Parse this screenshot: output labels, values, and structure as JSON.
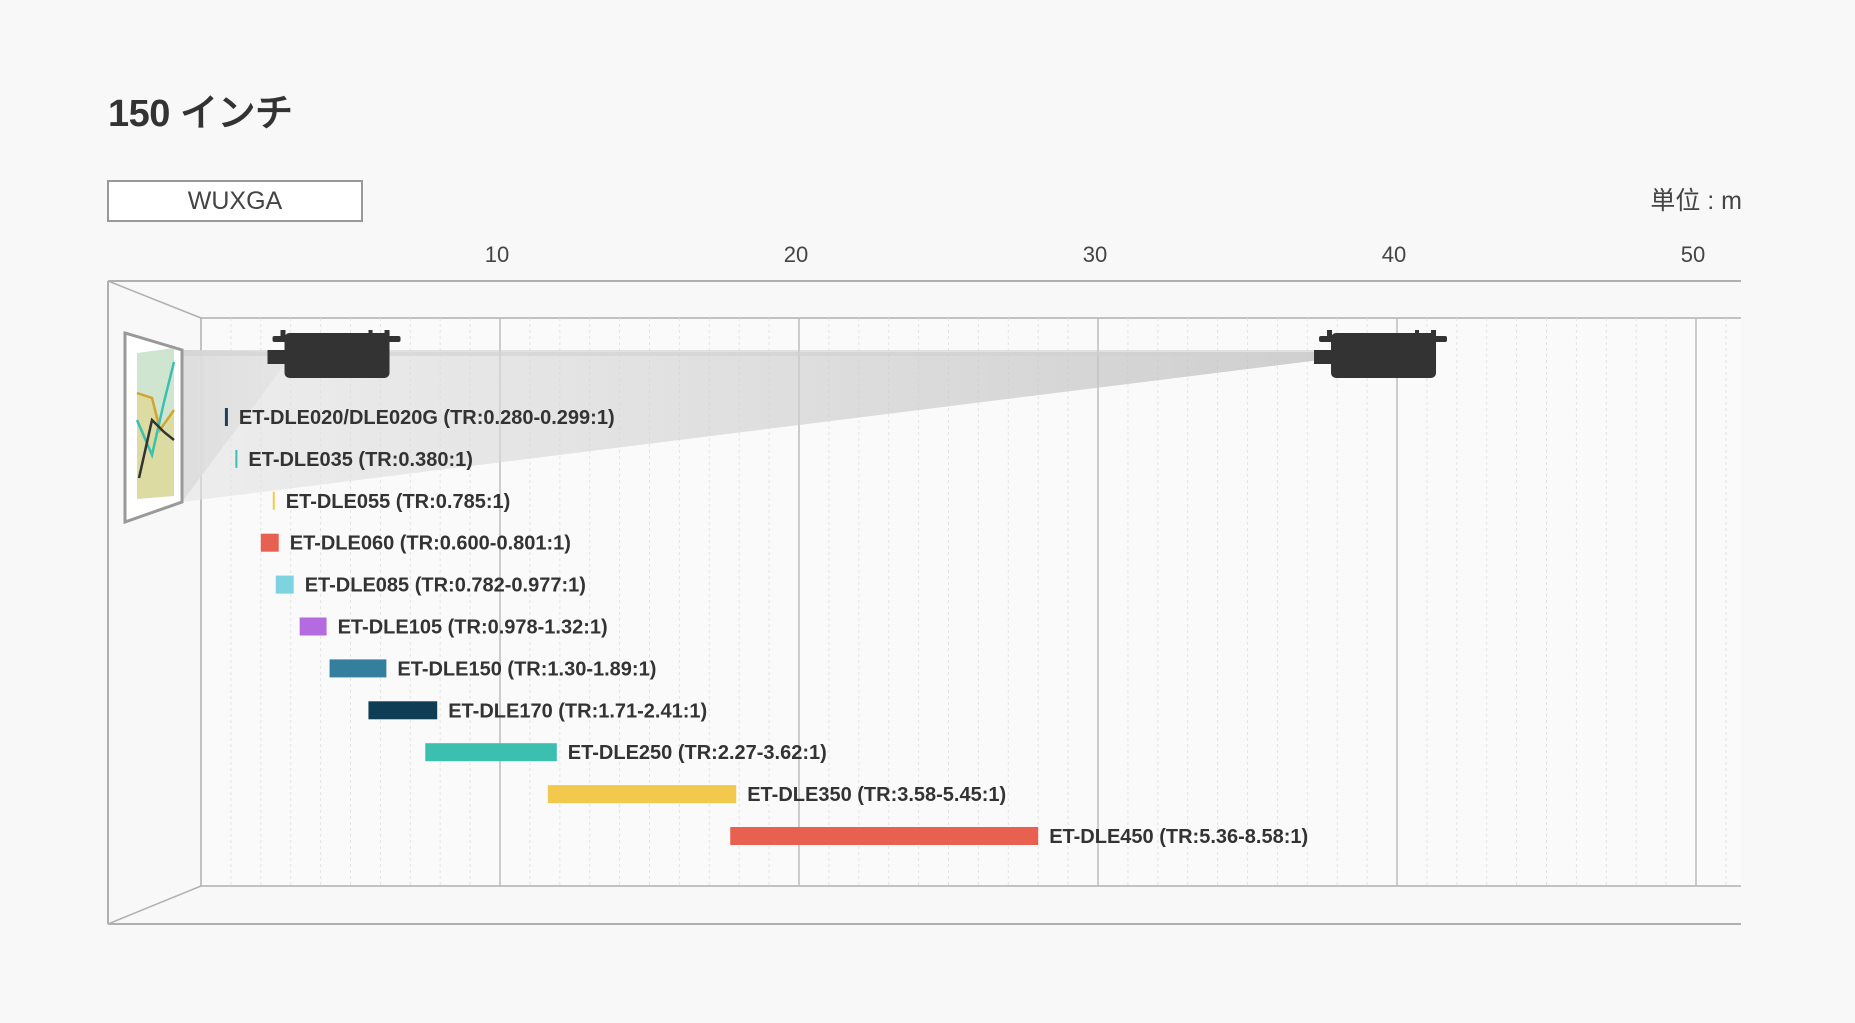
{
  "page": {
    "title": "150 インチ"
  },
  "resolution": {
    "label": "WUXGA"
  },
  "unit": {
    "label": "単位 : m"
  },
  "chart_data": {
    "type": "bar",
    "orientation": "horizontal-range",
    "title": "150 インチ",
    "xlabel": "単位 : m",
    "xlim": [
      0,
      52
    ],
    "major_ticks": [
      10,
      20,
      30,
      40,
      50
    ],
    "minor_tick_step": 1,
    "grid": true,
    "series": [
      {
        "name": "ET-DLE020/DLE020G (TR:0.280-0.299:1)",
        "start": 0.8,
        "end": 0.9,
        "color": "#1d3f5a"
      },
      {
        "name": "ET-DLE035 (TR:0.380:1)",
        "start": 1.15,
        "end": 1.2,
        "color": "#3bc0b0"
      },
      {
        "name": "ET-DLE055 (TR:0.785:1)",
        "start": 2.4,
        "end": 2.45,
        "color": "#f2c94c"
      },
      {
        "name": "ET-DLE060 (TR:0.600-0.801:1)",
        "start": 2.0,
        "end": 2.6,
        "color": "#e8604f"
      },
      {
        "name": "ET-DLE085 (TR:0.782-0.977:1)",
        "start": 2.5,
        "end": 3.1,
        "color": "#7dd3df"
      },
      {
        "name": "ET-DLE105 (TR:0.978-1.32:1)",
        "start": 3.3,
        "end": 4.2,
        "color": "#b56be0"
      },
      {
        "name": "ET-DLE150 (TR:1.30-1.89:1)",
        "start": 4.3,
        "end": 6.2,
        "color": "#347f9e"
      },
      {
        "name": "ET-DLE170 (TR:1.71-2.41:1)",
        "start": 5.6,
        "end": 7.9,
        "color": "#0f3d55"
      },
      {
        "name": "ET-DLE250 (TR:2.27-3.62:1)",
        "start": 7.5,
        "end": 11.9,
        "color": "#3bc0b0"
      },
      {
        "name": "ET-DLE350 (TR:3.58-5.45:1)",
        "start": 11.6,
        "end": 17.9,
        "color": "#f2c94c"
      },
      {
        "name": "ET-DLE450 (TR:5.36-8.58:1)",
        "start": 17.7,
        "end": 28.0,
        "color": "#e8604f"
      }
    ],
    "projector_positions": [
      4.8,
      39.8
    ],
    "colors": {
      "grid": "#d8d8d8",
      "axis": "#b0b0b0",
      "projector": "#333333",
      "beam": "#dcdcdc"
    }
  }
}
